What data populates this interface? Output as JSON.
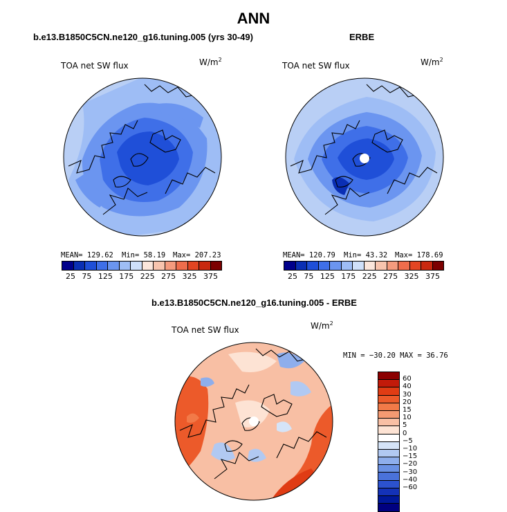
{
  "title": "ANN",
  "panels": [
    {
      "case": "b.e13.B1850C5CN.ne120_g16.tuning.005 (yrs 30-49)",
      "variable": "TOA net SW flux",
      "units": "W/m",
      "units_sup": "2",
      "stats": {
        "mean": "MEAN= 129.62",
        "min": "Min=  58.19",
        "max": "Max= 207.23"
      },
      "icons": [
        "polar-map-icon"
      ]
    },
    {
      "case": "ERBE",
      "variable": "TOA net SW flux",
      "units": "W/m",
      "units_sup": "2",
      "stats": {
        "mean": "MEAN= 120.79",
        "min": "Min=  43.32",
        "max": "Max= 178.69"
      }
    }
  ],
  "colorbar_top": {
    "colors": [
      "#00008b",
      "#0a2fb4",
      "#1f4fd8",
      "#3f6fe8",
      "#6b95f0",
      "#9ebdf5",
      "#cfe0fa",
      "#fbe6dc",
      "#f8c4ae",
      "#f59b7e",
      "#ef6d4c",
      "#e34522",
      "#c9280f",
      "#7c0000"
    ],
    "ticks": [
      "25",
      "75",
      "125",
      "175",
      "225",
      "275",
      "325",
      "375"
    ]
  },
  "diff": {
    "case": "b.e13.B1850C5CN.ne120_g16.tuning.005 - ERBE",
    "variable": "TOA net SW flux",
    "units": "W/m",
    "units_sup": "2",
    "minmax": "MIN = −30.20 MAX =  36.76"
  },
  "colorbar_diff": {
    "colors": [
      "#8b0000",
      "#c21a0a",
      "#e03c14",
      "#ec5a2a",
      "#f27a48",
      "#f49a72",
      "#f8bfa4",
      "#fde3d4",
      "#ffffff",
      "#d5e4f8",
      "#b1c9f2",
      "#8eaeec",
      "#6a91e4",
      "#4a72da",
      "#2c52cf",
      "#1432b8",
      "#00189a",
      "#000080"
    ],
    "ticks": [
      "60",
      "40",
      "30",
      "20",
      "15",
      "10",
      "5",
      "0",
      "−5",
      "−10",
      "−15",
      "−20",
      "−30",
      "−40",
      "−60"
    ]
  }
}
